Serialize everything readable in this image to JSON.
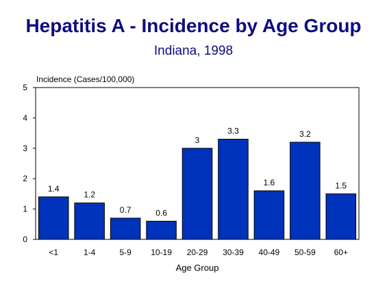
{
  "chart_data": {
    "type": "bar",
    "title": "Hepatitis A - Incidence by Age Group",
    "subtitle": "Indiana, 1998",
    "xlabel": "Age Group",
    "ylabel": "Incidence (Cases/100,000)",
    "categories": [
      "<1",
      "1-4",
      "5-9",
      "10-19",
      "20-29",
      "30-39",
      "40-49",
      "50-59",
      "60+"
    ],
    "values": [
      1.4,
      1.2,
      0.7,
      0.6,
      3,
      3.3,
      1.6,
      3.2,
      1.5
    ],
    "data_labels": [
      "1.4",
      "1.2",
      "0.7",
      "0.6",
      "3",
      "3.3",
      "1.6",
      "3.2",
      "1.5"
    ],
    "yticks": [
      "0",
      "1",
      "2",
      "3",
      "4",
      "5"
    ],
    "ylim": [
      0,
      5
    ],
    "grid": false,
    "bar_color": "#0033bb",
    "title_color": "#0d0d80"
  }
}
